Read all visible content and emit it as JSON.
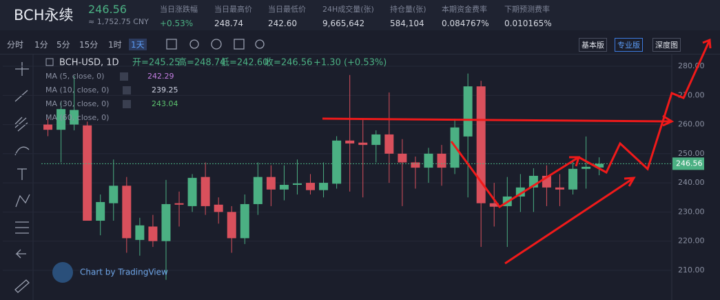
{
  "header": {
    "symbol": "BCH永续",
    "price": "246.56",
    "cny": "≈ 1,752.75 CNY",
    "stats": [
      {
        "label": "当日涨跌幅",
        "value": "+0.53%"
      },
      {
        "label": "当日最高价",
        "value": "248.74"
      },
      {
        "label": "当日最低价",
        "value": "242.60"
      },
      {
        "label": "24H成交量(张)",
        "value": "9,665,642"
      },
      {
        "label": "持仓量(张)",
        "value": "584,104"
      },
      {
        "label": "本期资金费率",
        "value": "0.084767%"
      },
      {
        "label": "下期预测费率",
        "value": "0.010165%"
      }
    ]
  },
  "toolbar": {
    "intervals": [
      "分时",
      "1分",
      "5分",
      "15分",
      "1时",
      "1天"
    ],
    "versions": [
      "基本版",
      "专业版",
      "深度图"
    ]
  },
  "chart_data": {
    "type": "candlestick",
    "title": "BCH-USD, 1D",
    "ohlc": [
      "开=245.25",
      "高=248.74",
      "低=242.60",
      "收=246.56",
      "+1.30 (+0.53%)"
    ],
    "indicators": [
      {
        "name": "MA (5, close, 0)",
        "value": "242.29",
        "color": "#c27de0"
      },
      {
        "name": "MA (10, close, 0)",
        "value": "239.25",
        "color": "#d0d4e4"
      },
      {
        "name": "MA (30, close, 0)",
        "value": "243.04",
        "color": "#5cc26e"
      },
      {
        "name": "MA (60, close, 0)"
      }
    ],
    "watermark": "Chart by TradingView",
    "open": [
      260,
      258.2,
      260,
      259.7,
      227,
      233,
      239,
      220.4,
      225,
      220,
      233,
      232,
      242,
      232.5,
      230,
      221,
      232.7,
      242,
      237.7,
      239.3,
      240,
      237.5,
      239.7,
      254.5,
      253.8,
      253,
      256.6,
      250,
      247,
      245.2,
      250,
      245.2,
      255.9,
      273.1,
      233,
      232,
      235.3,
      238.4,
      242.4,
      238.4,
      237.7,
      244.8,
      245.25
    ],
    "high": [
      262,
      268,
      276.7,
      261,
      236,
      248,
      242,
      228,
      229,
      241,
      237,
      243,
      247,
      235,
      232,
      236,
      247,
      246,
      246,
      248,
      243,
      247,
      256,
      277,
      262,
      258,
      271,
      255,
      249,
      252,
      253,
      262,
      277.5,
      275,
      240,
      242,
      243,
      245,
      246,
      243,
      248,
      255.9,
      248.74
    ],
    "low": [
      256,
      247,
      258,
      227,
      222,
      227,
      216,
      215,
      218,
      206.7,
      225,
      230,
      229,
      226,
      216,
      219,
      229,
      232,
      234,
      236,
      236,
      235,
      238,
      237,
      235,
      247,
      240,
      232,
      238,
      240,
      239,
      243,
      235,
      218,
      225,
      218,
      230,
      230,
      232,
      232,
      236,
      238,
      242.6
    ],
    "close": [
      258.2,
      265.3,
      265,
      227,
      233.4,
      239,
      221,
      225.4,
      220,
      232.7,
      232.5,
      241.7,
      232,
      230,
      221,
      232.7,
      242,
      237.7,
      239.3,
      239.8,
      237.5,
      240,
      254.5,
      253.5,
      253,
      256.6,
      250,
      247,
      245.2,
      250,
      245.2,
      259,
      273.1,
      233,
      231.8,
      235.3,
      238.4,
      242.4,
      238.4,
      237.7,
      244.8,
      245.5,
      246.56
    ],
    "up_color": "#4bb083",
    "down_color": "#d9505c",
    "ylim": [
      200.5,
      283.8
    ],
    "yticks": [
      {
        "value": 210,
        "label": "210.00"
      },
      {
        "value": 220,
        "label": "220.00"
      },
      {
        "value": 230,
        "label": "230.00"
      },
      {
        "value": 240,
        "label": "240.00"
      },
      {
        "value": 250,
        "label": "250.00"
      },
      {
        "value": 260,
        "label": "260.00"
      },
      {
        "value": 270,
        "label": "270.00"
      },
      {
        "value": 280,
        "label": "280.00"
      }
    ],
    "last_price": 246.56,
    "grid": true
  }
}
